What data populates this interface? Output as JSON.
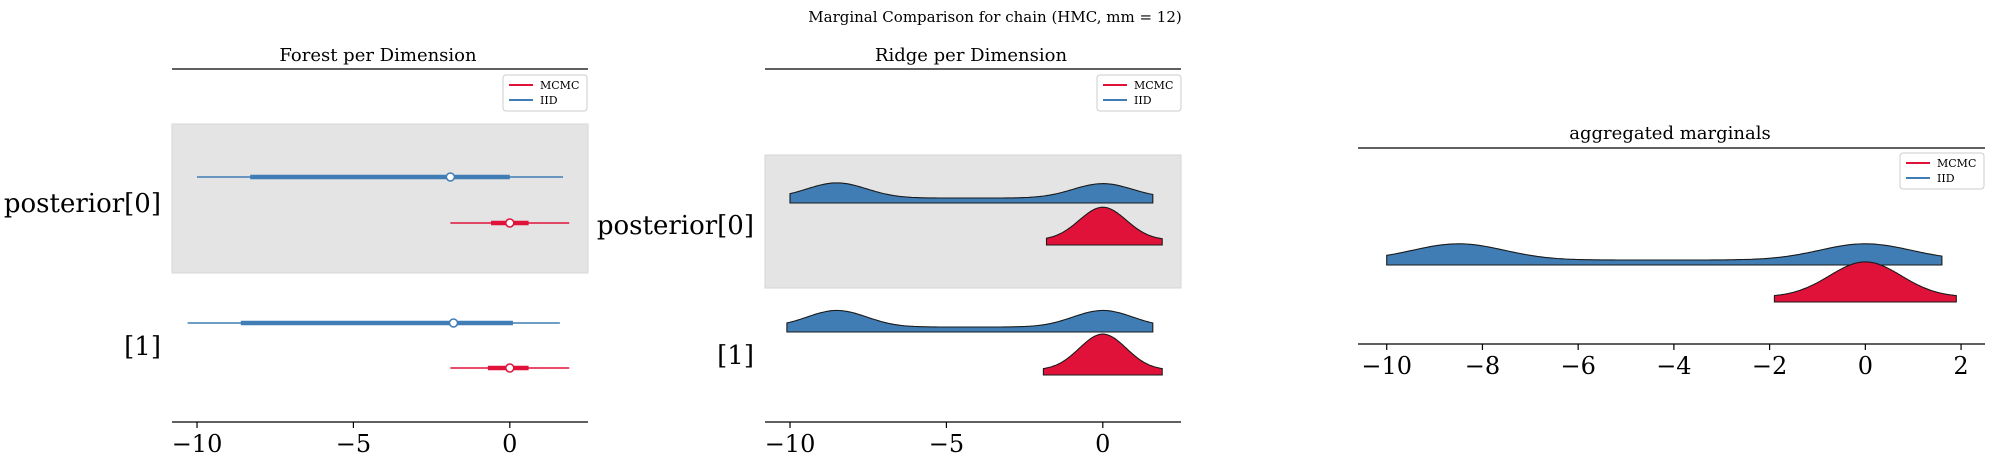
{
  "figure": {
    "suptitle": "Marginal Comparison for chain (HMC, mm = 12)"
  },
  "colors": {
    "mcmc": "#e0123a",
    "iid": "#3f7db4",
    "band": "#e4e4e4",
    "axis": "#000000"
  },
  "chart_data": [
    {
      "type": "forest",
      "title": "Forest per Dimension",
      "xticks": [
        -10,
        -5,
        0
      ],
      "xlim": [
        -10.8,
        2.5
      ],
      "rows": [
        {
          "label": "posterior[0]",
          "shaded": true,
          "series": [
            {
              "name": "IID",
              "hdi": [
                -10.0,
                1.7
              ],
              "iqr": [
                -8.3,
                0.0
              ],
              "center": -1.9
            },
            {
              "name": "MCMC",
              "hdi": [
                -1.9,
                1.9
              ],
              "iqr": [
                -0.6,
                0.6
              ],
              "center": 0.0
            }
          ]
        },
        {
          "label": "[1]",
          "shaded": false,
          "series": [
            {
              "name": "IID",
              "hdi": [
                -10.3,
                1.6
              ],
              "iqr": [
                -8.6,
                0.1
              ],
              "center": -1.8
            },
            {
              "name": "MCMC",
              "hdi": [
                -1.9,
                1.9
              ],
              "iqr": [
                -0.7,
                0.6
              ],
              "center": 0.0
            }
          ]
        }
      ],
      "legend": [
        "MCMC",
        "IID"
      ],
      "legend_loc": "upper right"
    },
    {
      "type": "ridge",
      "title": "Ridge per Dimension",
      "xticks": [
        -10,
        -5,
        0
      ],
      "xlim": [
        -10.8,
        2.5
      ],
      "rows": [
        {
          "label": "posterior[0]",
          "shaded": true,
          "series": [
            {
              "name": "IID",
              "range": [
                -10.0,
                1.6
              ],
              "modes": [
                {
                  "mu": -8.5,
                  "sd": 0.95,
                  "w": 1.0
                },
                {
                  "mu": 0.0,
                  "sd": 0.95,
                  "w": 0.95
                }
              ]
            },
            {
              "name": "MCMC",
              "range": [
                -1.8,
                1.9
              ],
              "modes": [
                {
                  "mu": 0.0,
                  "sd": 0.75,
                  "w": 1.0
                }
              ]
            }
          ]
        },
        {
          "label": "[1]",
          "shaded": false,
          "series": [
            {
              "name": "IID",
              "range": [
                -10.1,
                1.6
              ],
              "modes": [
                {
                  "mu": -8.5,
                  "sd": 0.95,
                  "w": 1.0
                },
                {
                  "mu": 0.0,
                  "sd": 0.95,
                  "w": 1.0
                }
              ]
            },
            {
              "name": "MCMC",
              "range": [
                -1.9,
                1.9
              ],
              "modes": [
                {
                  "mu": 0.0,
                  "sd": 0.75,
                  "w": 1.0
                }
              ]
            }
          ]
        }
      ],
      "legend": [
        "MCMC",
        "IID"
      ],
      "legend_loc": "upper right"
    },
    {
      "type": "ridge",
      "title": "aggregated marginals",
      "xticks": [
        -10,
        -8,
        -6,
        -4,
        -2,
        0,
        2
      ],
      "xlim": [
        -10.6,
        2.5
      ],
      "rows": [
        {
          "label": "",
          "shaded": false,
          "series": [
            {
              "name": "IID",
              "range": [
                -10.0,
                1.6
              ],
              "modes": [
                {
                  "mu": -8.5,
                  "sd": 0.95,
                  "w": 1.0
                },
                {
                  "mu": 0.0,
                  "sd": 0.95,
                  "w": 1.0
                }
              ]
            },
            {
              "name": "MCMC",
              "range": [
                -1.9,
                1.9
              ],
              "modes": [
                {
                  "mu": 0.0,
                  "sd": 0.75,
                  "w": 1.0
                }
              ]
            }
          ]
        }
      ],
      "legend": [
        "MCMC",
        "IID"
      ],
      "legend_loc": "upper right"
    }
  ]
}
